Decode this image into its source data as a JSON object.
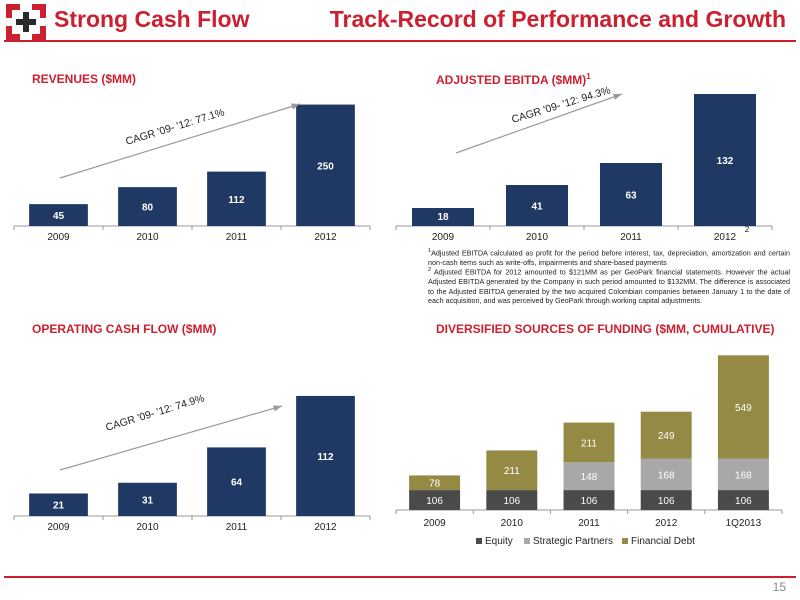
{
  "header": {
    "left_title": "Strong Cash Flow",
    "right_title": "Track-Record of Performance and Growth",
    "logo_name": "geopark-logo"
  },
  "colors": {
    "accent": "#cc1f2f",
    "bar": "#1f3864",
    "equity": "#4a4a4a",
    "strategic": "#a8a8a8",
    "debt": "#948a44"
  },
  "panels": {
    "revenues_title": "REVENUES ($MM)",
    "ebitda_title": "ADJUSTED EBITDA ($MM)",
    "ebitda_title_sup": "1",
    "ocf_title": "OPERATING CASH FLOW ($MM)",
    "funding_title": "DIVERSIFIED SOURCES OF FUNDING ($MM, CUMULATIVE)"
  },
  "footnotes": {
    "note1_marker": "1",
    "note1": "Adjusted EBITDA calculated as profit for the period before interest, tax, depreciation, amortization and certain non-cash items such as write-offs, impairments and share-based payments",
    "note2_marker": "2",
    "note2": "Adjusted EBITDA for 2012 amounted to $121MM as per GeoPark financial statements. However the actual Adjusted EBITDA generated by the Company in such period amounted to $132MM. The difference is associated to the Adjusted EBITDA generated by the two acquired Colombian companies between January 1 to the date of each acquisition, and was perceived by GeoPark through working capital adjustments."
  },
  "page_number": "15",
  "chart_data": [
    {
      "id": "revenues",
      "type": "bar",
      "title": "REVENUES ($MM)",
      "categories": [
        "2009",
        "2010",
        "2011",
        "2012"
      ],
      "values": [
        45,
        80,
        112,
        250
      ],
      "labels": [
        "45",
        "80",
        "112",
        "250"
      ],
      "annotation": "CAGR '09- '12: 77.1%",
      "ylim": [
        0,
        280
      ]
    },
    {
      "id": "ebitda",
      "type": "bar",
      "title": "ADJUSTED EBITDA ($MM)",
      "categories": [
        "2009",
        "2010",
        "2011",
        "2012"
      ],
      "values": [
        18,
        41,
        63,
        132
      ],
      "labels": [
        "18",
        "41",
        "63",
        "132"
      ],
      "category_note": {
        "index": 3,
        "text": "2"
      },
      "annotation": "CAGR '09- '12: 94.3%",
      "ylim": [
        0,
        140
      ]
    },
    {
      "id": "ocf",
      "type": "bar",
      "title": "OPERATING CASH FLOW ($MM)",
      "categories": [
        "2009",
        "2010",
        "2011",
        "2012"
      ],
      "values": [
        21,
        31,
        64,
        112
      ],
      "labels": [
        "21",
        "31",
        "64",
        "112"
      ],
      "annotation": "CAGR '09- '12: 74.9%",
      "ylim": [
        0,
        125
      ]
    },
    {
      "id": "funding",
      "type": "bar",
      "stacked": true,
      "title": "DIVERSIFIED SOURCES OF FUNDING ($MM, CUMULATIVE)",
      "categories": [
        "2009",
        "2010",
        "2011",
        "2012",
        "1Q2013"
      ],
      "series": [
        {
          "name": "Equity",
          "values": [
            106,
            106,
            106,
            106,
            106
          ]
        },
        {
          "name": "Strategic Partners",
          "values": [
            0,
            0,
            148,
            168,
            168
          ]
        },
        {
          "name": "Financial Debt",
          "values": [
            78,
            211,
            211,
            249,
            549
          ]
        }
      ],
      "legend": "bottom",
      "ylim": [
        0,
        830
      ]
    }
  ]
}
